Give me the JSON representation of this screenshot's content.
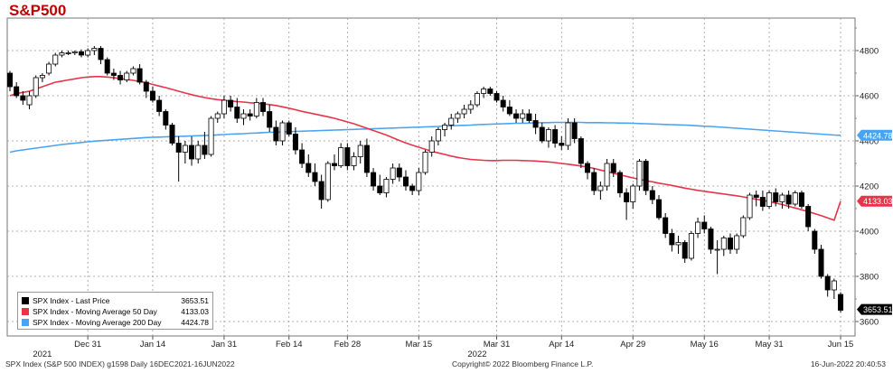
{
  "title": "S&P500",
  "footer": {
    "left": "SPX Index (S&P 500 INDEX) g1598  Daily 16DEC2021-16JUN2022",
    "center": "Copyright© 2022 Bloomberg Finance L.P.",
    "right": "16-Jun-2022 20:40:53"
  },
  "legend": [
    {
      "name": "SPX Index - Last Price",
      "value": "3653.51",
      "color": "#000000"
    },
    {
      "name": "SPX Index - Moving Average 50 Day",
      "value": "4133.03",
      "color": "#e8344a"
    },
    {
      "name": "SPX Index - Moving Average 200 Day",
      "value": "4424.78",
      "color": "#4aa3f0"
    }
  ],
  "chart_data": {
    "type": "candlestick",
    "ylim": [
      3560,
      4960
    ],
    "y_ticks": [
      "4800",
      "4600",
      "4400",
      "4200",
      "4000",
      "3800",
      "3600"
    ],
    "x_ticks": [
      {
        "label": "Dec 31",
        "index": 12
      },
      {
        "label": "Jan 14",
        "index": 22
      },
      {
        "label": "Jan 31",
        "index": 33
      },
      {
        "label": "Feb 14",
        "index": 43
      },
      {
        "label": "Feb 28",
        "index": 52
      },
      {
        "label": "Mar 15",
        "index": 63
      },
      {
        "label": "Mar 31",
        "index": 75
      },
      {
        "label": "Apr 14",
        "index": 85
      },
      {
        "label": "Apr 29",
        "index": 96
      },
      {
        "label": "May 16",
        "index": 107
      },
      {
        "label": "May 31",
        "index": 117
      },
      {
        "label": "Jun 15",
        "index": 128
      }
    ],
    "year_labels": [
      {
        "label": "2021",
        "index": 5
      },
      {
        "label": "2022",
        "index": 72
      }
    ],
    "last_value_labels": [
      {
        "text": "4424.78",
        "value": 4424.78,
        "bg": "#4aa3f0",
        "fg": "#ffffff"
      },
      {
        "text": "4133.03",
        "value": 4133.03,
        "bg": "#e8344a",
        "fg": "#ffffff"
      },
      {
        "text": "3653.51",
        "value": 3653.51,
        "bg": "#000000",
        "fg": "#ffffff"
      }
    ],
    "candles": [
      [
        4700,
        4710,
        4620,
        4640
      ],
      [
        4640,
        4660,
        4590,
        4600
      ],
      [
        4600,
        4620,
        4560,
        4580
      ],
      [
        4560,
        4620,
        4540,
        4600
      ],
      [
        4600,
        4690,
        4590,
        4680
      ],
      [
        4680,
        4700,
        4660,
        4690
      ],
      [
        4700,
        4750,
        4690,
        4740
      ],
      [
        4740,
        4790,
        4730,
        4780
      ],
      [
        4780,
        4800,
        4770,
        4790
      ],
      [
        4790,
        4800,
        4780,
        4790
      ],
      [
        4790,
        4800,
        4780,
        4795
      ],
      [
        4795,
        4805,
        4770,
        4780
      ],
      [
        4780,
        4810,
        4770,
        4800
      ],
      [
        4800,
        4820,
        4780,
        4810
      ],
      [
        4810,
        4820,
        4740,
        4760
      ],
      [
        4760,
        4770,
        4690,
        4700
      ],
      [
        4700,
        4720,
        4670,
        4690
      ],
      [
        4690,
        4710,
        4650,
        4670
      ],
      [
        4670,
        4710,
        4660,
        4700
      ],
      [
        4700,
        4730,
        4690,
        4720
      ],
      [
        4720,
        4740,
        4650,
        4660
      ],
      [
        4660,
        4670,
        4590,
        4620
      ],
      [
        4620,
        4640,
        4570,
        4580
      ],
      [
        4580,
        4600,
        4510,
        4530
      ],
      [
        4530,
        4540,
        4450,
        4470
      ],
      [
        4470,
        4480,
        4380,
        4390
      ],
      [
        4390,
        4420,
        4220,
        4350
      ],
      [
        4350,
        4400,
        4300,
        4380
      ],
      [
        4380,
        4420,
        4290,
        4320
      ],
      [
        4320,
        4400,
        4300,
        4380
      ],
      [
        4380,
        4440,
        4320,
        4340
      ],
      [
        4340,
        4510,
        4330,
        4500
      ],
      [
        4500,
        4530,
        4480,
        4520
      ],
      [
        4520,
        4600,
        4500,
        4580
      ],
      [
        4580,
        4600,
        4530,
        4550
      ],
      [
        4550,
        4590,
        4480,
        4500
      ],
      [
        4500,
        4540,
        4470,
        4520
      ],
      [
        4520,
        4540,
        4490,
        4510
      ],
      [
        4510,
        4590,
        4500,
        4570
      ],
      [
        4570,
        4590,
        4510,
        4530
      ],
      [
        4530,
        4560,
        4440,
        4460
      ],
      [
        4460,
        4490,
        4380,
        4400
      ],
      [
        4400,
        4490,
        4380,
        4480
      ],
      [
        4480,
        4490,
        4420,
        4430
      ],
      [
        4430,
        4460,
        4340,
        4360
      ],
      [
        4360,
        4390,
        4280,
        4300
      ],
      [
        4300,
        4340,
        4240,
        4260
      ],
      [
        4260,
        4300,
        4200,
        4220
      ],
      [
        4220,
        4250,
        4100,
        4140
      ],
      [
        4140,
        4310,
        4130,
        4300
      ],
      [
        4300,
        4340,
        4270,
        4290
      ],
      [
        4290,
        4390,
        4280,
        4370
      ],
      [
        4370,
        4390,
        4270,
        4290
      ],
      [
        4290,
        4350,
        4270,
        4330
      ],
      [
        4330,
        4400,
        4300,
        4380
      ],
      [
        4380,
        4410,
        4240,
        4260
      ],
      [
        4260,
        4280,
        4180,
        4200
      ],
      [
        4200,
        4250,
        4160,
        4170
      ],
      [
        4170,
        4240,
        4150,
        4230
      ],
      [
        4230,
        4300,
        4210,
        4280
      ],
      [
        4280,
        4300,
        4220,
        4240
      ],
      [
        4240,
        4270,
        4180,
        4200
      ],
      [
        4200,
        4210,
        4160,
        4180
      ],
      [
        4180,
        4280,
        4160,
        4260
      ],
      [
        4260,
        4360,
        4250,
        4350
      ],
      [
        4350,
        4420,
        4330,
        4400
      ],
      [
        4400,
        4460,
        4380,
        4450
      ],
      [
        4450,
        4480,
        4420,
        4470
      ],
      [
        4470,
        4520,
        4450,
        4500
      ],
      [
        4500,
        4530,
        4480,
        4520
      ],
      [
        4520,
        4560,
        4500,
        4540
      ],
      [
        4540,
        4580,
        4520,
        4560
      ],
      [
        4560,
        4620,
        4550,
        4610
      ],
      [
        4610,
        4640,
        4590,
        4630
      ],
      [
        4630,
        4640,
        4600,
        4610
      ],
      [
        4610,
        4620,
        4570,
        4580
      ],
      [
        4580,
        4600,
        4530,
        4550
      ],
      [
        4550,
        4580,
        4510,
        4520
      ],
      [
        4520,
        4540,
        4480,
        4500
      ],
      [
        4500,
        4540,
        4480,
        4520
      ],
      [
        4520,
        4540,
        4480,
        4490
      ],
      [
        4490,
        4520,
        4430,
        4460
      ],
      [
        4460,
        4480,
        4390,
        4400
      ],
      [
        4400,
        4460,
        4370,
        4450
      ],
      [
        4450,
        4470,
        4370,
        4390
      ],
      [
        4390,
        4420,
        4360,
        4380
      ],
      [
        4380,
        4500,
        4360,
        4480
      ],
      [
        4480,
        4500,
        4390,
        4410
      ],
      [
        4410,
        4420,
        4280,
        4300
      ],
      [
        4300,
        4310,
        4230,
        4260
      ],
      [
        4260,
        4280,
        4160,
        4180
      ],
      [
        4180,
        4220,
        4140,
        4200
      ],
      [
        4200,
        4320,
        4180,
        4300
      ],
      [
        4300,
        4320,
        4240,
        4260
      ],
      [
        4260,
        4270,
        4150,
        4170
      ],
      [
        4170,
        4190,
        4050,
        4130
      ],
      [
        4130,
        4210,
        4100,
        4200
      ],
      [
        4200,
        4320,
        4180,
        4310
      ],
      [
        4310,
        4320,
        4160,
        4180
      ],
      [
        4180,
        4200,
        4120,
        4140
      ],
      [
        4140,
        4160,
        4050,
        4060
      ],
      [
        4060,
        4080,
        3970,
        3990
      ],
      [
        3990,
        4010,
        3910,
        3940
      ],
      [
        3940,
        3980,
        3900,
        3950
      ],
      [
        3950,
        3960,
        3860,
        3880
      ],
      [
        3880,
        4000,
        3870,
        3990
      ],
      [
        3990,
        4060,
        3970,
        4040
      ],
      [
        4040,
        4070,
        3990,
        4010
      ],
      [
        4010,
        4020,
        3900,
        3920
      ],
      [
        3920,
        3960,
        3810,
        3920
      ],
      [
        3920,
        3980,
        3890,
        3970
      ],
      [
        3970,
        3990,
        3900,
        3920
      ],
      [
        3920,
        3990,
        3900,
        3980
      ],
      [
        3980,
        4070,
        3970,
        4060
      ],
      [
        4060,
        4170,
        4050,
        4160
      ],
      [
        4160,
        4180,
        4110,
        4150
      ],
      [
        4150,
        4180,
        4090,
        4110
      ],
      [
        4110,
        4180,
        4100,
        4170
      ],
      [
        4170,
        4190,
        4110,
        4130
      ],
      [
        4130,
        4170,
        4100,
        4160
      ],
      [
        4160,
        4180,
        4100,
        4120
      ],
      [
        4120,
        4180,
        4110,
        4170
      ],
      [
        4170,
        4180,
        4100,
        4110
      ],
      [
        4110,
        4120,
        4000,
        4020
      ],
      [
        4000,
        4010,
        3900,
        3920
      ],
      [
        3920,
        3940,
        3790,
        3800
      ],
      [
        3800,
        3810,
        3710,
        3740
      ],
      [
        3740,
        3790,
        3700,
        3780
      ],
      [
        3720,
        3730,
        3640,
        3650
      ]
    ],
    "ma50": [
      4600,
      4610,
      4615,
      4620,
      4630,
      4640,
      4650,
      4660,
      4665,
      4670,
      4675,
      4680,
      4683,
      4685,
      4685,
      4683,
      4680,
      4676,
      4672,
      4668,
      4663,
      4658,
      4650,
      4643,
      4636,
      4628,
      4620,
      4612,
      4605,
      4598,
      4592,
      4587,
      4583,
      4580,
      4577,
      4574,
      4572,
      4569,
      4567,
      4564,
      4561,
      4557,
      4551,
      4545,
      4538,
      4531,
      4525,
      4519,
      4513,
      4507,
      4500,
      4492,
      4484,
      4476,
      4466,
      4456,
      4446,
      4436,
      4426,
      4414,
      4402,
      4391,
      4381,
      4372,
      4363,
      4354,
      4347,
      4340,
      4333,
      4327,
      4322,
      4318,
      4316,
      4314,
      4313,
      4313,
      4314,
      4314,
      4314,
      4313,
      4312,
      4311,
      4309,
      4307,
      4304,
      4300,
      4297,
      4293,
      4289,
      4284,
      4278,
      4271,
      4264,
      4257,
      4250,
      4243,
      4236,
      4230,
      4224,
      4219,
      4213,
      4208,
      4203,
      4197,
      4191,
      4186,
      4181,
      4177,
      4173,
      4169,
      4165,
      4161,
      4157,
      4152,
      4147,
      4142,
      4137,
      4131,
      4125,
      4118,
      4110,
      4103,
      4095,
      4087,
      4078,
      4069,
      4059,
      4049,
      4133
    ],
    "ma200": [
      4350,
      4356,
      4360,
      4364,
      4368,
      4372,
      4376,
      4380,
      4384,
      4387,
      4390,
      4393,
      4396,
      4399,
      4401,
      4403,
      4405,
      4407,
      4409,
      4411,
      4413,
      4415,
      4416,
      4417,
      4418,
      4419,
      4420,
      4421,
      4422,
      4423,
      4424,
      4425,
      4427,
      4428,
      4430,
      4431,
      4432,
      4434,
      4435,
      4437,
      4438,
      4439,
      4440,
      4441,
      4442,
      4443,
      4444,
      4445,
      4446,
      4447,
      4448,
      4449,
      4450,
      4451,
      4452,
      4453,
      4454,
      4455,
      4456,
      4457,
      4458,
      4459,
      4460,
      4461,
      4462,
      4463,
      4464,
      4466,
      4467,
      4468,
      4469,
      4470,
      4472,
      4473,
      4474,
      4475,
      4476,
      4477,
      4478,
      4478,
      4479,
      4480,
      4481,
      4481,
      4482,
      4482,
      4482,
      4482,
      4482,
      4481,
      4481,
      4481,
      4480,
      4480,
      4479,
      4479,
      4478,
      4477,
      4476,
      4475,
      4474,
      4473,
      4472,
      4471,
      4470,
      4469,
      4467,
      4465,
      4464,
      4462,
      4460,
      4458,
      4456,
      4454,
      4452,
      4450,
      4448,
      4446,
      4444,
      4442,
      4440,
      4438,
      4436,
      4434,
      4432,
      4430,
      4428,
      4426,
      4424.78
    ]
  }
}
